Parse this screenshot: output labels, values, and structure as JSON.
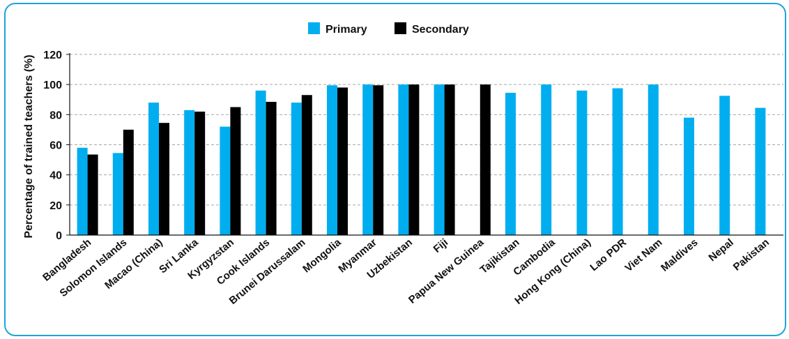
{
  "chart_data": {
    "type": "bar",
    "title": "",
    "xlabel": "",
    "ylabel": "Percentage of trained teachers (%)",
    "ylim": [
      0,
      120
    ],
    "yticks": [
      0,
      20,
      40,
      60,
      80,
      100,
      120
    ],
    "grid": true,
    "legend_position": "top-center",
    "categories": [
      "Bangladesh",
      "Solomon Islands",
      "Macao (China)",
      "Sri Lanka",
      "Kyrgyzstan",
      "Cook Islands",
      "Brunei Darussalam",
      "Mongolia",
      "Myanmar",
      "Uzbekistan",
      "Fiji",
      "Papua New Guinea",
      "Tajikistan",
      "Cambodia",
      "Hong Kong (China)",
      "Lao PDR",
      "Viet Nam",
      "Maldives",
      "Nepal",
      "Pakistan"
    ],
    "series": [
      {
        "name": "Primary",
        "color": "#00aeef",
        "values": [
          58,
          54.5,
          88,
          83,
          72,
          96,
          88,
          99.5,
          100,
          100,
          100,
          null,
          94.5,
          100,
          96,
          97.5,
          100,
          78,
          92.5,
          84.5
        ]
      },
      {
        "name": "Secondary",
        "color": "#000000",
        "values": [
          53.5,
          70,
          74.5,
          82,
          85,
          88.5,
          93,
          98,
          99.5,
          100,
          100,
          100,
          null,
          null,
          null,
          null,
          null,
          null,
          null,
          null
        ]
      }
    ]
  }
}
